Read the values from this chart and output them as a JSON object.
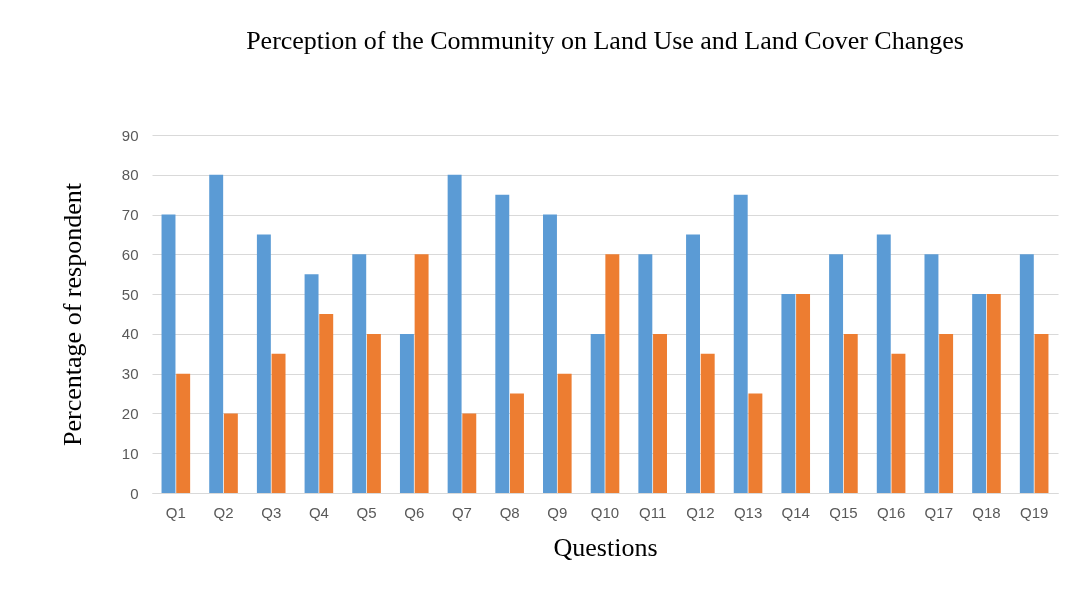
{
  "chart_data": {
    "type": "bar",
    "title": "Perception of the Community on Land Use and Land Cover Changes",
    "xlabel": "Questions",
    "ylabel": "Percentage of respondent",
    "categories": [
      "Q1",
      "Q2",
      "Q3",
      "Q4",
      "Q5",
      "Q6",
      "Q7",
      "Q8",
      "Q9",
      "Q10",
      "Q11",
      "Q12",
      "Q13",
      "Q14",
      "Q15",
      "Q16",
      "Q17",
      "Q18",
      "Q19"
    ],
    "series": [
      {
        "color": "#5b9bd5",
        "values": [
          70,
          80,
          65,
          55,
          60,
          40,
          80,
          75,
          70,
          40,
          60,
          65,
          75,
          50,
          60,
          65,
          60,
          50,
          60
        ]
      },
      {
        "color": "#ed7d31",
        "values": [
          30,
          20,
          35,
          45,
          40,
          60,
          20,
          25,
          30,
          60,
          40,
          35,
          25,
          50,
          40,
          35,
          40,
          50,
          40
        ]
      }
    ],
    "ylim": [
      0,
      90
    ],
    "yticks": [
      0,
      10,
      20,
      30,
      40,
      50,
      60,
      70,
      80,
      90
    ],
    "grid": "y",
    "legend": false
  }
}
